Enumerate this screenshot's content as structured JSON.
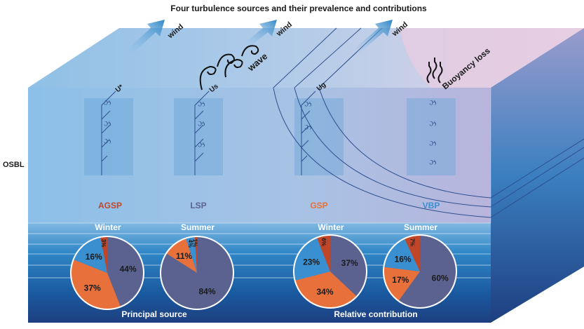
{
  "title": "Four turbulence sources and their prevalence and contributions",
  "osbl_label": "OSBL",
  "top_labels": {
    "wind1": "wind",
    "wind2": "wind",
    "wind3": "wind",
    "wave": "wave",
    "buoyancy": "Buoyancy loss"
  },
  "velocity_labels": [
    "U*",
    "Us",
    "Ug"
  ],
  "sources": [
    {
      "name": "AGSP",
      "color": "#c0462a"
    },
    {
      "name": "LSP",
      "color": "#5b6290"
    },
    {
      "name": "GSP",
      "color": "#e8703a"
    },
    {
      "name": "VBP",
      "color": "#3a8fd0"
    }
  ],
  "groups": [
    {
      "title": "Principal source",
      "pies": [
        {
          "season": "Winter",
          "slices": [
            {
              "source": "LSP",
              "value": 44,
              "label": "44%"
            },
            {
              "source": "GSP",
              "value": 37,
              "label": "37%"
            },
            {
              "source": "VBP",
              "value": 16,
              "label": "16%"
            },
            {
              "source": "AGSP",
              "value": 3,
              "label": "3%"
            }
          ]
        },
        {
          "season": "Summer",
          "slices": [
            {
              "source": "LSP",
              "value": 84,
              "label": "84%"
            },
            {
              "source": "GSP",
              "value": 11,
              "label": "11%"
            },
            {
              "source": "VBP",
              "value": 4,
              "label": "4%"
            },
            {
              "source": "AGSP",
              "value": 1,
              "label": "1%"
            }
          ]
        }
      ]
    },
    {
      "title": "Relative contribution",
      "pies": [
        {
          "season": "Winter",
          "slices": [
            {
              "source": "LSP",
              "value": 37,
              "label": "37%"
            },
            {
              "source": "GSP",
              "value": 34,
              "label": "34%"
            },
            {
              "source": "VBP",
              "value": 23,
              "label": "23%"
            },
            {
              "source": "AGSP",
              "value": 6,
              "label": "6%"
            }
          ]
        },
        {
          "season": "Summer",
          "slices": [
            {
              "source": "LSP",
              "value": 60,
              "label": "60%"
            },
            {
              "source": "GSP",
              "value": 17,
              "label": "17%"
            },
            {
              "source": "VBP",
              "value": 16,
              "label": "16%"
            },
            {
              "source": "AGSP",
              "value": 7,
              "label": "7%"
            }
          ]
        }
      ]
    }
  ]
}
